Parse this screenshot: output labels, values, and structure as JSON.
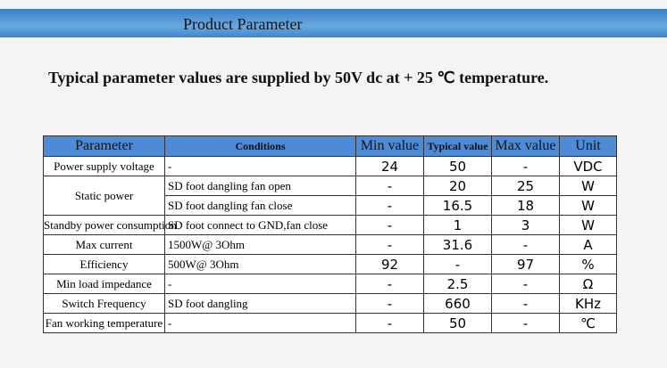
{
  "header": {
    "title": "Product Parameter"
  },
  "subtitle": "Typical parameter values are supplied by 50V dc at + 25 ℃ temperature.",
  "table": {
    "columns": [
      "Parameter",
      "Conditions",
      "Min value",
      "Typical value",
      "Max  value",
      "Unit"
    ],
    "rows": [
      {
        "parameter": "Power supply voltage",
        "conditions": "-",
        "min": "24",
        "typical": "50",
        "max": "-",
        "unit": "VDC"
      },
      {
        "parameter": "Static power",
        "conditions": "SD foot dangling fan open",
        "min": "-",
        "typical": "20",
        "max": "25",
        "unit": "W"
      },
      {
        "conditions": "SD foot dangling fan close",
        "min": "-",
        "typical": "16.5",
        "max": "18",
        "unit": "W"
      },
      {
        "parameter": "Standby power consumption",
        "conditions": "SD foot connect to GND,fan close",
        "min": "-",
        "typical": "1",
        "max": "3",
        "unit": "W"
      },
      {
        "parameter": "Max current",
        "conditions": "1500W@ 3Ohm",
        "min": "-",
        "typical": "31.6",
        "max": "-",
        "unit": "A"
      },
      {
        "parameter": "Efficiency",
        "conditions": "500W@ 3Ohm",
        "min": "92",
        "typical": "-",
        "max": "97",
        "unit": "%"
      },
      {
        "parameter": "Min load impedance",
        "conditions": "-",
        "min": "-",
        "typical": "2.5",
        "max": "-",
        "unit": "Ω"
      },
      {
        "parameter": "Switch Frequency",
        "conditions": "SD foot dangling",
        "min": "-",
        "typical": "660",
        "max": "-",
        "unit": "KHz"
      },
      {
        "parameter": "Fan working temperature",
        "conditions": "-",
        "min": "-",
        "typical": "50",
        "max": "-",
        "unit": "℃"
      }
    ]
  }
}
